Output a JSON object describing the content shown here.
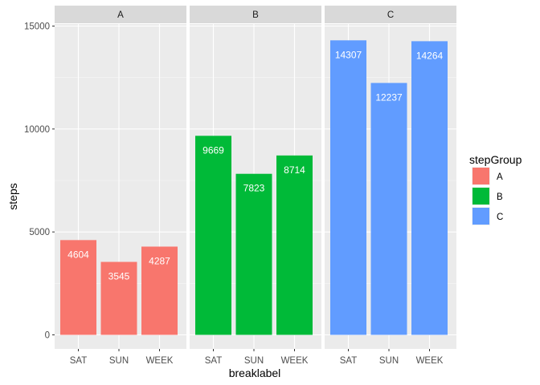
{
  "chart_data": {
    "type": "bar",
    "facet_by": "stepGroup",
    "xlabel": "breaklabel",
    "ylabel": "steps",
    "ylim": [
      0,
      15000
    ],
    "y_ticks": [
      0,
      5000,
      10000,
      15000
    ],
    "y_tick_labels": [
      "0",
      "5000",
      "10000",
      "15000"
    ],
    "categories": [
      "SAT",
      "SUN",
      "WEEK"
    ],
    "grid": true,
    "legend": {
      "title": "stepGroup",
      "placement": "right",
      "entries": [
        {
          "label": "A",
          "color": "#F8766D"
        },
        {
          "label": "B",
          "color": "#00BA38"
        },
        {
          "label": "C",
          "color": "#619CFF"
        }
      ]
    },
    "panels": [
      {
        "name": "A",
        "color": "#F8766D",
        "values": [
          4604,
          3545,
          4287
        ],
        "value_labels": [
          "4604",
          "3545",
          "4287"
        ]
      },
      {
        "name": "B",
        "color": "#00BA38",
        "values": [
          9669,
          7823,
          8714
        ],
        "value_labels": [
          "9669",
          "7823",
          "8714"
        ]
      },
      {
        "name": "C",
        "color": "#619CFF",
        "values": [
          14307,
          12237,
          14264
        ],
        "value_labels": [
          "14307",
          "12237",
          "14264"
        ]
      }
    ]
  }
}
